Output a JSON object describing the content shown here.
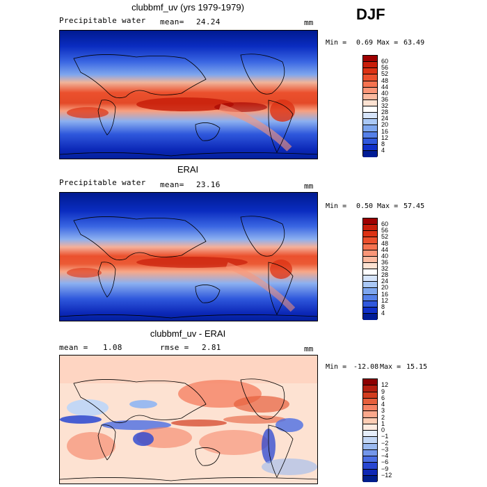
{
  "season": "DJF",
  "panels": [
    {
      "title": "clubbmf_uv (yrs 1979-1979)",
      "left_label": "Precipitable water",
      "center_label": "mean=",
      "center_value": "24.24",
      "right_label": "mm",
      "min_label": "Min =",
      "min_value": "0.69",
      "max_label": "Max =",
      "max_value": "63.49",
      "colorbar": {
        "labels": [
          "60",
          "56",
          "52",
          "48",
          "44",
          "40",
          "36",
          "32",
          "28",
          "24",
          "20",
          "16",
          "12",
          "8",
          "4"
        ],
        "colors": [
          "#9e0000",
          "#c81e0a",
          "#dc3214",
          "#eb502d",
          "#f57350",
          "#fa9678",
          "#fcbaa0",
          "#fde2d2",
          "#ffffff",
          "#d6e4fa",
          "#aac8f5",
          "#7ea6ee",
          "#5580e8",
          "#3058dc",
          "#1030c8",
          "#001c96"
        ]
      }
    },
    {
      "title": "ERAI",
      "left_label": "Precipitable water",
      "center_label": "mean=",
      "center_value": "23.16",
      "right_label": "mm",
      "min_label": "Min =",
      "min_value": "0.50",
      "max_label": "Max =",
      "max_value": "57.45",
      "colorbar": {
        "labels": [
          "60",
          "56",
          "52",
          "48",
          "44",
          "40",
          "36",
          "32",
          "28",
          "24",
          "20",
          "16",
          "12",
          "8",
          "4"
        ],
        "colors": [
          "#9e0000",
          "#c81e0a",
          "#dc3214",
          "#eb502d",
          "#f57350",
          "#fa9678",
          "#fcbaa0",
          "#fde2d2",
          "#ffffff",
          "#d6e4fa",
          "#aac8f5",
          "#7ea6ee",
          "#5580e8",
          "#3058dc",
          "#1030c8",
          "#001c96"
        ]
      }
    },
    {
      "title": "clubbmf_uv - ERAI",
      "left_label": "mean =",
      "left_value": "1.08",
      "center_label": "rmse =",
      "center_value": "2.81",
      "right_label": "mm",
      "min_label": "Min =",
      "min_value": "-12.08",
      "max_label": "Max =",
      "max_value": "15.15",
      "colorbar": {
        "labels": [
          "12",
          "9",
          "6",
          "4",
          "3",
          "2",
          "1",
          "0",
          "−1",
          "−2",
          "−3",
          "−4",
          "−6",
          "−9",
          "−12"
        ],
        "colors": [
          "#8c0000",
          "#b41e0f",
          "#d23c1e",
          "#e65f3c",
          "#f58264",
          "#fba88c",
          "#fdcdb4",
          "#feebe0",
          "#e6eefa",
          "#c3d7f5",
          "#9bbaf0",
          "#7396ea",
          "#4b6ee4",
          "#2846d2",
          "#0f28b4",
          "#001e8c"
        ]
      }
    }
  ]
}
